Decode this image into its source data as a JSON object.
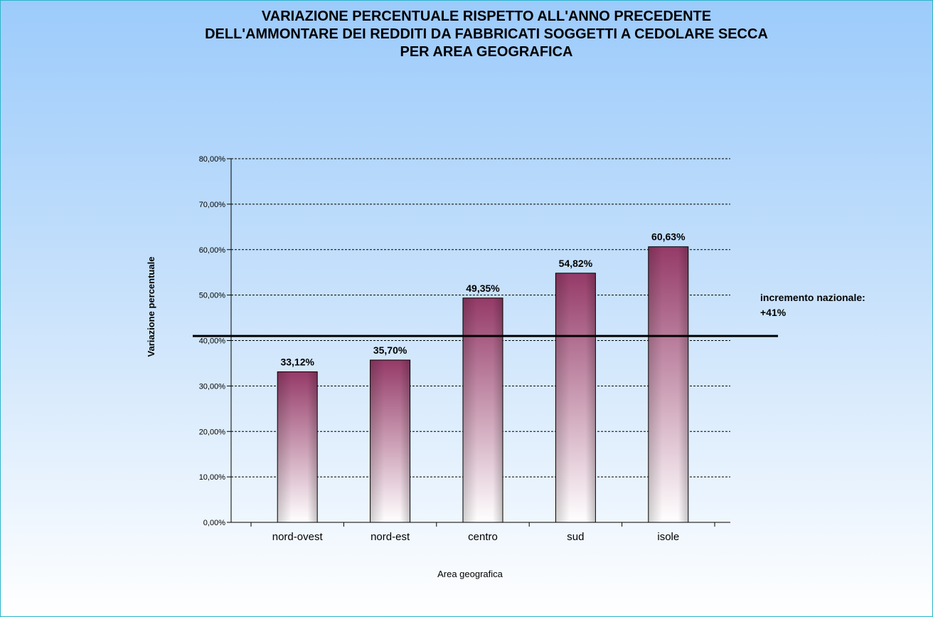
{
  "chart_data": {
    "type": "bar",
    "title_lines": [
      "VARIAZIONE PERCENTUALE RISPETTO ALL'ANNO PRECEDENTE",
      "DELL'AMMONTARE DEI REDDITI DA FABBRICATI SOGGETTI A CEDOLARE SECCA",
      "PER AREA GEOGRAFICA"
    ],
    "xlabel": "Area geografica",
    "ylabel": "Variazione percentuale",
    "categories": [
      "nord-ovest",
      "nord-est",
      "centro",
      "sud",
      "isole"
    ],
    "values": [
      33.12,
      35.7,
      49.35,
      54.82,
      60.63
    ],
    "data_labels": [
      "33,12%",
      "35,70%",
      "49,35%",
      "54,82%",
      "60,63%"
    ],
    "ylim": [
      0,
      80
    ],
    "yticks": [
      0,
      10,
      20,
      30,
      40,
      50,
      60,
      70,
      80
    ],
    "ytick_labels": [
      "0,00%",
      "10,00%",
      "20,00%",
      "30,00%",
      "40,00%",
      "50,00%",
      "60,00%",
      "70,00%",
      "80,00%"
    ],
    "grid": "horizontal-dashed",
    "reference_line": {
      "value": 41,
      "label_lines": [
        "incremento nazionale:",
        "+41%"
      ]
    },
    "colors": {
      "bar_top": "#953a68",
      "bar_bottom": "#ffffff",
      "border": "#2bb5c9",
      "background_top": "#9ccbfb",
      "background_bottom": "#ffffff"
    }
  }
}
